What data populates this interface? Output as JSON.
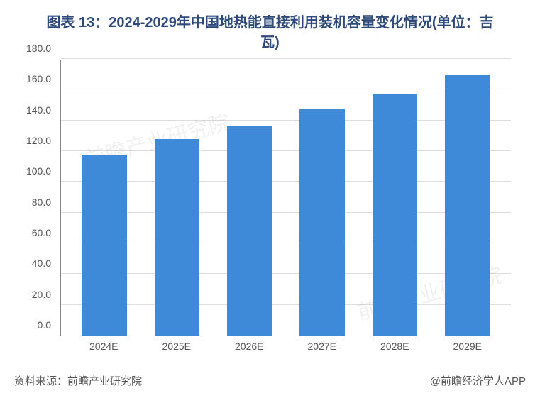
{
  "title": "图表 13：2024-2029年中国地热能直接利用装机容量变化情况(单位：吉瓦)",
  "chart": {
    "type": "bar",
    "categories": [
      "2024E",
      "2025E",
      "2026E",
      "2027E",
      "2028E",
      "2029E"
    ],
    "values": [
      118,
      128,
      137,
      148,
      158,
      170
    ],
    "bar_color": "#3e8ad8",
    "grid_color": "#dddddd",
    "axis_color": "#888888",
    "background_color": "#ffffff",
    "ylim": [
      0,
      180
    ],
    "ytick_step": 20,
    "ytick_decimals": 1,
    "title_color": "#2e4a7a",
    "title_fontsize": 20,
    "label_fontsize": 14,
    "label_color": "#555555",
    "bar_width_ratio": 0.62
  },
  "footer": {
    "source_label": "资料来源：",
    "source_value": "前瞻产业研究院",
    "attribution": "@前瞻经济学人APP"
  },
  "watermark_text": "前瞻产业研究院"
}
